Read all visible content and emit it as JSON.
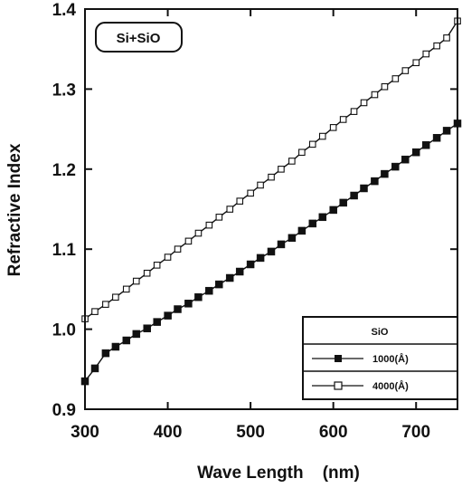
{
  "chart_data": {
    "type": "line",
    "title": "",
    "annotation": "Si+SiO",
    "xlabel": "Wave Length    (nm)",
    "ylabel": "Refractive Index",
    "xlim": [
      300,
      750
    ],
    "ylim": [
      0.9,
      1.4
    ],
    "x_ticks": [
      300,
      400,
      500,
      600,
      700
    ],
    "y_ticks": [
      0.9,
      1.0,
      1.1,
      1.2,
      1.3,
      1.4
    ],
    "x_tick_labels": [
      "300",
      "400",
      "500",
      "600",
      "700"
    ],
    "y_tick_labels": [
      "0.9",
      "1.0",
      "1.1",
      "1.2",
      "1.3",
      "1.4"
    ],
    "legend": {
      "title": "SiO",
      "placement": "bottom-right",
      "entries": [
        "1000(Å)",
        "4000(Å)"
      ]
    },
    "series": [
      {
        "name": "1000(Å)",
        "marker": "filled-square",
        "x": [
          300,
          312,
          325,
          337,
          350,
          362,
          375,
          387,
          400,
          412,
          425,
          437,
          450,
          462,
          475,
          487,
          500,
          512,
          525,
          537,
          550,
          562,
          575,
          587,
          600,
          612,
          625,
          637,
          650,
          662,
          675,
          687,
          700,
          712,
          725,
          737,
          750
        ],
        "values": [
          0.935,
          0.951,
          0.97,
          0.978,
          0.986,
          0.994,
          1.001,
          1.009,
          1.017,
          1.025,
          1.032,
          1.04,
          1.048,
          1.056,
          1.064,
          1.072,
          1.081,
          1.089,
          1.097,
          1.106,
          1.114,
          1.123,
          1.132,
          1.14,
          1.149,
          1.158,
          1.167,
          1.176,
          1.185,
          1.194,
          1.203,
          1.212,
          1.221,
          1.23,
          1.239,
          1.248,
          1.257
        ]
      },
      {
        "name": "4000(Å)",
        "marker": "open-square",
        "x": [
          300,
          312,
          325,
          337,
          350,
          362,
          375,
          387,
          400,
          412,
          425,
          437,
          450,
          462,
          475,
          487,
          500,
          512,
          525,
          537,
          550,
          562,
          575,
          587,
          600,
          612,
          625,
          637,
          650,
          662,
          675,
          687,
          700,
          712,
          725,
          737,
          750
        ],
        "values": [
          1.013,
          1.022,
          1.031,
          1.04,
          1.05,
          1.06,
          1.07,
          1.08,
          1.09,
          1.1,
          1.11,
          1.12,
          1.13,
          1.14,
          1.15,
          1.16,
          1.17,
          1.18,
          1.19,
          1.2,
          1.21,
          1.221,
          1.231,
          1.241,
          1.252,
          1.262,
          1.272,
          1.283,
          1.293,
          1.303,
          1.313,
          1.323,
          1.333,
          1.344,
          1.354,
          1.364,
          1.385
        ]
      }
    ]
  }
}
